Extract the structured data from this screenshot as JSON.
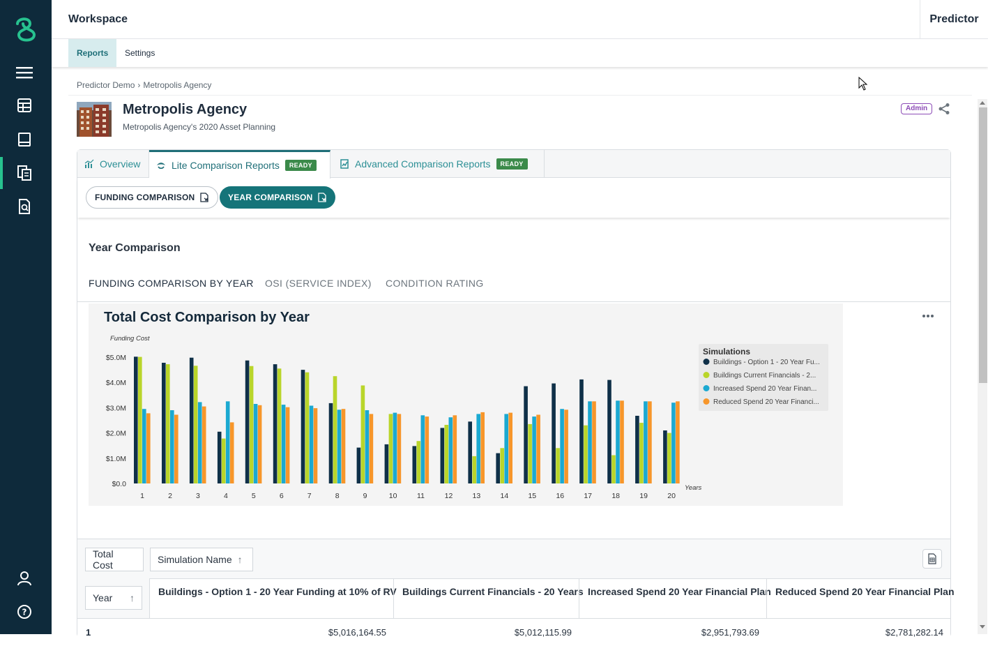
{
  "header": {
    "workspace": "Workspace",
    "app": "Predictor"
  },
  "subnav": {
    "reports": "Reports",
    "settings": "Settings"
  },
  "breadcrumb": {
    "root": "Predictor Demo",
    "sep": "›",
    "current": "Metropolis Agency"
  },
  "agency": {
    "name": "Metropolis Agency",
    "subtitle": "Metropolis Agency's 2020 Asset Planning",
    "badge": "Admin"
  },
  "tabs": {
    "overview": "Overview",
    "lite": "Lite Comparison Reports",
    "advanced": "Advanced Comparison Reports",
    "ready": "READY"
  },
  "pills": {
    "funding": "FUNDING COMPARISON",
    "year": "YEAR COMPARISON"
  },
  "section_title": "Year Comparison",
  "subtabs": {
    "funding_by_year": "FUNDING COMPARISON BY YEAR",
    "osi": "OSI (SERVICE INDEX)",
    "condition": "CONDITION RATING"
  },
  "chart_data": {
    "type": "bar",
    "title": "Total Cost Comparison by Year",
    "ylabel": "Funding Cost",
    "xlabel": "Years",
    "ylim": [
      0,
      5.0
    ],
    "yticks": [
      "$0.0",
      "$1.0M",
      "$2.0M",
      "$3.0M",
      "$4.0M",
      "$5.0M"
    ],
    "categories": [
      "1",
      "2",
      "3",
      "4",
      "5",
      "6",
      "7",
      "8",
      "9",
      "10",
      "11",
      "12",
      "13",
      "14",
      "15",
      "16",
      "17",
      "18",
      "19",
      "20"
    ],
    "legend_title": "Simulations",
    "legend_position": "right",
    "series": [
      {
        "name": "Buildings - Option 1 - 20 Year Funding at 10% of RV",
        "legend": "Buildings - Option 1 - 20 Year Fu...",
        "color": "#0f3048",
        "values": [
          5.02,
          4.78,
          4.98,
          2.05,
          4.87,
          4.72,
          4.5,
          3.18,
          1.42,
          1.55,
          1.48,
          2.2,
          2.45,
          1.2,
          3.85,
          3.96,
          4.12,
          4.1,
          2.68,
          2.1
        ]
      },
      {
        "name": "Buildings Current Financials - 20 Years",
        "legend": "Buildings Current Financials - 2...",
        "color": "#b9d52a",
        "values": [
          5.01,
          4.72,
          4.66,
          1.78,
          4.65,
          4.55,
          4.4,
          4.25,
          3.88,
          2.75,
          1.68,
          2.32,
          1.08,
          1.4,
          2.35,
          1.4,
          2.3,
          1.12,
          2.4,
          2.0
        ]
      },
      {
        "name": "Increased Spend 20 Year Financial Plan",
        "legend": "Increased Spend 20 Year Finan...",
        "color": "#1ba9d1",
        "values": [
          2.95,
          2.9,
          3.22,
          3.25,
          3.15,
          3.12,
          3.08,
          2.92,
          2.9,
          2.8,
          2.7,
          2.62,
          2.75,
          2.75,
          2.65,
          2.95,
          3.25,
          3.28,
          3.25,
          3.2
        ]
      },
      {
        "name": "Reduced Spend 20 Year Financial Plan",
        "legend": "Reduced Spend 20 Year Financi...",
        "color": "#f7962a",
        "values": [
          2.78,
          2.72,
          3.05,
          2.42,
          3.1,
          3.02,
          2.98,
          2.95,
          2.75,
          2.75,
          2.65,
          2.7,
          2.82,
          2.8,
          2.72,
          2.92,
          3.25,
          3.28,
          3.25,
          3.25
        ]
      }
    ]
  },
  "table": {
    "chip_total_cost": "Total Cost",
    "chip_sim_name": "Simulation Name",
    "chip_year": "Year",
    "sort_arrow": "↑",
    "columns": [
      "Buildings - Option 1 - 20 Year Funding at 10% of RV",
      "Buildings Current Financials - 20 Years",
      "Increased Spend 20 Year Financial Plan",
      "Reduced Spend 20 Year Financial Plan"
    ],
    "rows": [
      {
        "year": "1",
        "values": [
          "$5,016,164.55",
          "$5,012,115.99",
          "$2,951,793.69",
          "$2,781,282.14"
        ]
      }
    ]
  },
  "icons": [
    "logo-icon",
    "menu-icon",
    "database-icon",
    "book-icon",
    "reports-icon",
    "report-search-icon",
    "user-icon",
    "help-icon",
    "share-icon",
    "overview-chart-icon",
    "lite-report-icon",
    "advanced-report-icon",
    "export-doc-icon",
    "more-icon",
    "excel-export-icon"
  ]
}
